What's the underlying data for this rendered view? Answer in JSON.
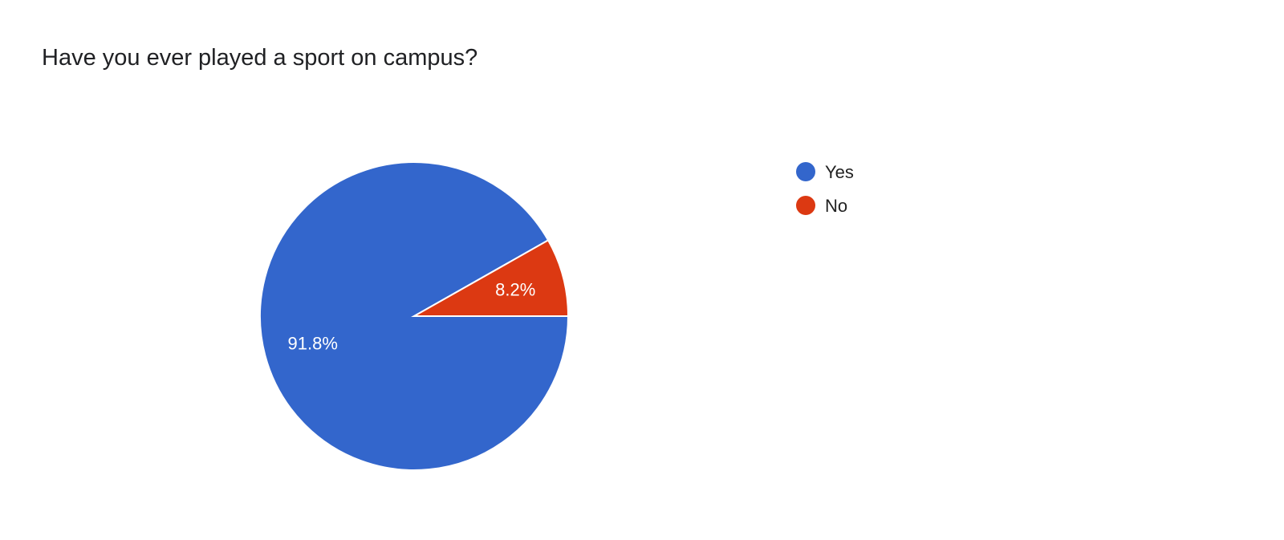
{
  "chart_data": {
    "type": "pie",
    "title": "Have you ever played a sport on campus?",
    "categories": [
      "Yes",
      "No"
    ],
    "values": [
      91.8,
      8.2
    ],
    "data_labels": [
      "91.8%",
      "8.2%"
    ],
    "colors": [
      "#3366cc",
      "#dc3912"
    ],
    "legend_position": "right",
    "start_angle": "3 o'clock, clockwise"
  }
}
